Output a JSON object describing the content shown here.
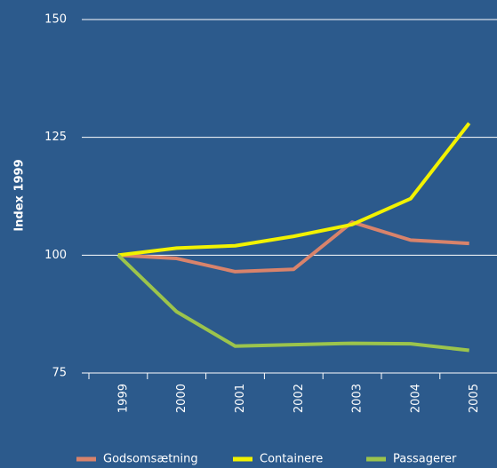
{
  "chart_data": {
    "type": "line",
    "y_label": "Index 1999",
    "categories": [
      "1999",
      "2000",
      "2001",
      "2002",
      "2003",
      "2004",
      "2005"
    ],
    "series": [
      {
        "name": "Godsomsætning",
        "color": "#d9836b",
        "values": [
          100,
          99.3,
          96.5,
          97,
          107,
          103.2,
          102.5
        ]
      },
      {
        "name": "Containere",
        "color": "#f2f200",
        "values": [
          100,
          101.5,
          102,
          104,
          106.5,
          112,
          128
        ]
      },
      {
        "name": "Passagerer",
        "color": "#9cc44c",
        "values": [
          100,
          88,
          80.7,
          81,
          81.3,
          81.2,
          79.8
        ]
      }
    ],
    "ylim": [
      75,
      150
    ],
    "yticks": [
      75,
      100,
      125,
      150
    ],
    "grid": true
  }
}
